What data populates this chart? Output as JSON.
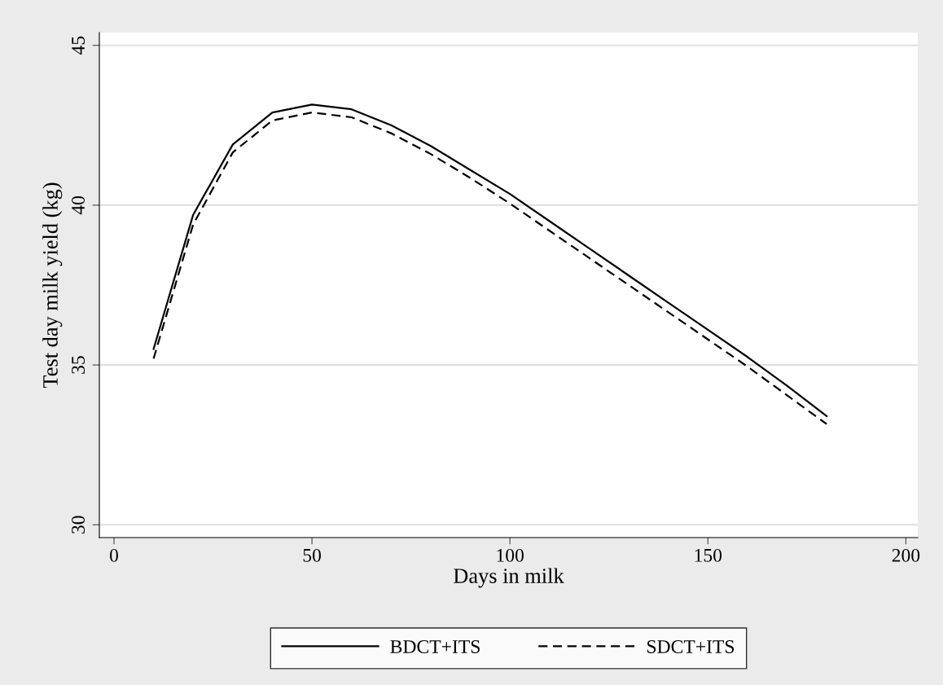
{
  "chart_data": {
    "type": "line",
    "xlabel": "Days in milk",
    "ylabel": "Test day milk yield (kg)",
    "x": [
      10,
      20,
      30,
      40,
      50,
      60,
      70,
      80,
      90,
      100,
      110,
      120,
      130,
      140,
      150,
      160,
      170,
      180
    ],
    "series": [
      {
        "name": "BDCT+ITS",
        "color": "#000000",
        "line_style": "solid",
        "values": [
          35.5,
          39.7,
          41.9,
          42.9,
          43.15,
          43.0,
          42.5,
          41.85,
          41.1,
          40.35,
          39.5,
          38.65,
          37.8,
          36.95,
          36.1,
          35.25,
          34.35,
          33.4
        ]
      },
      {
        "name": "SDCT+ITS",
        "color": "#000000",
        "line_style": "dashed",
        "values": [
          35.2,
          39.4,
          41.65,
          42.65,
          42.9,
          42.75,
          42.25,
          41.6,
          40.85,
          40.05,
          39.2,
          38.35,
          37.5,
          36.65,
          35.8,
          34.95,
          34.05,
          33.15
        ]
      }
    ],
    "xlim": [
      -3.7,
      203
    ],
    "ylim": [
      29.6,
      45.4
    ],
    "xticks": [
      0,
      50,
      100,
      150,
      200
    ],
    "yticks": [
      30,
      35,
      40,
      45
    ],
    "grid": "y",
    "legend": "bottom",
    "marker": "none"
  }
}
